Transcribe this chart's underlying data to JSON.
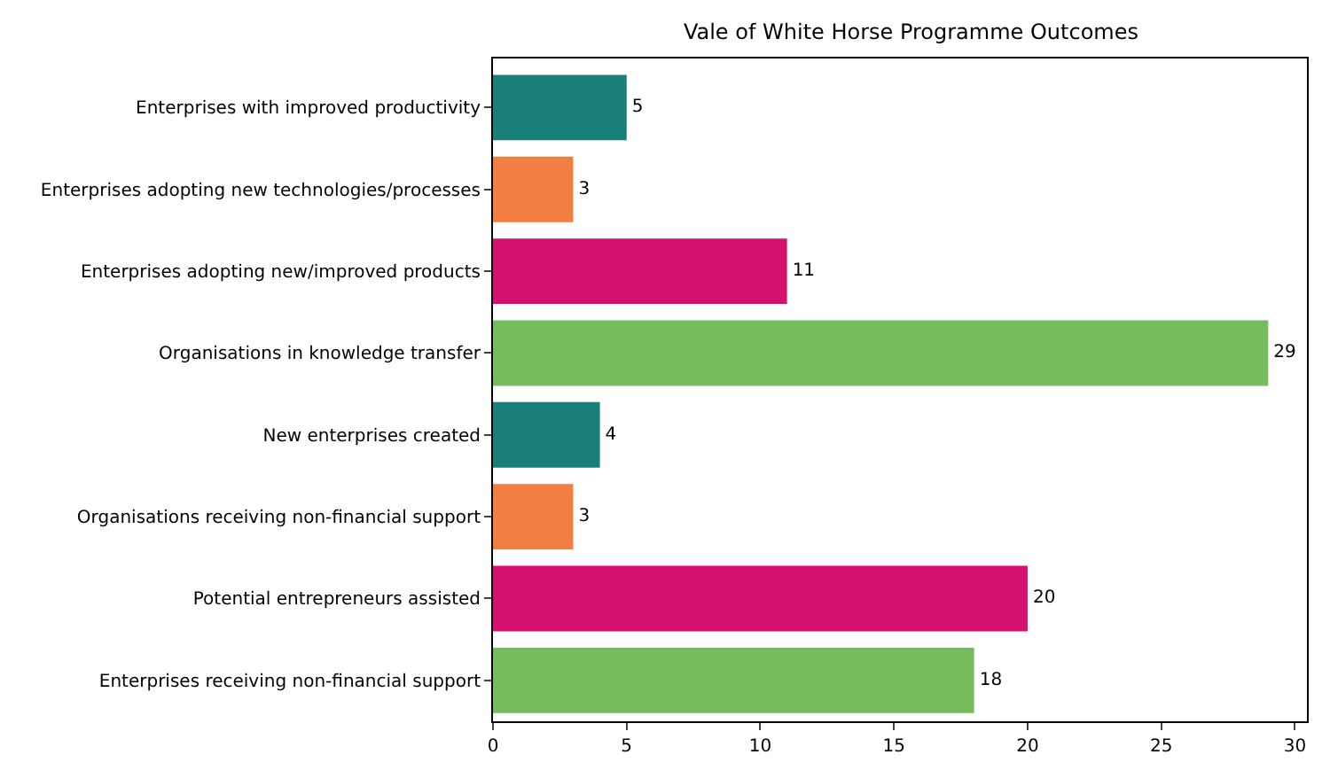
{
  "chart_data": {
    "type": "bar",
    "orientation": "horizontal",
    "title": "Vale of White Horse Programme Outcomes",
    "categories": [
      "Enterprises with improved productivity",
      "Enterprises adopting new technologies/processes",
      "Enterprises adopting new/improved products",
      "Organisations in knowledge transfer",
      "New enterprises created",
      "Organisations receiving non-financial support",
      "Potential entrepreneurs assisted",
      "Enterprises receiving non-financial support"
    ],
    "values": [
      5,
      3,
      11,
      29,
      4,
      3,
      20,
      18
    ],
    "colors": [
      "#1a7f78",
      "#f07f41",
      "#d4116e",
      "#77bb5f",
      "#1a7f78",
      "#f07f41",
      "#d4116e",
      "#77bb5f"
    ],
    "xlim": [
      0,
      30.45
    ],
    "xticks": [
      0,
      5,
      10,
      15,
      20,
      25,
      30
    ],
    "data_labels": true,
    "legend": false
  }
}
